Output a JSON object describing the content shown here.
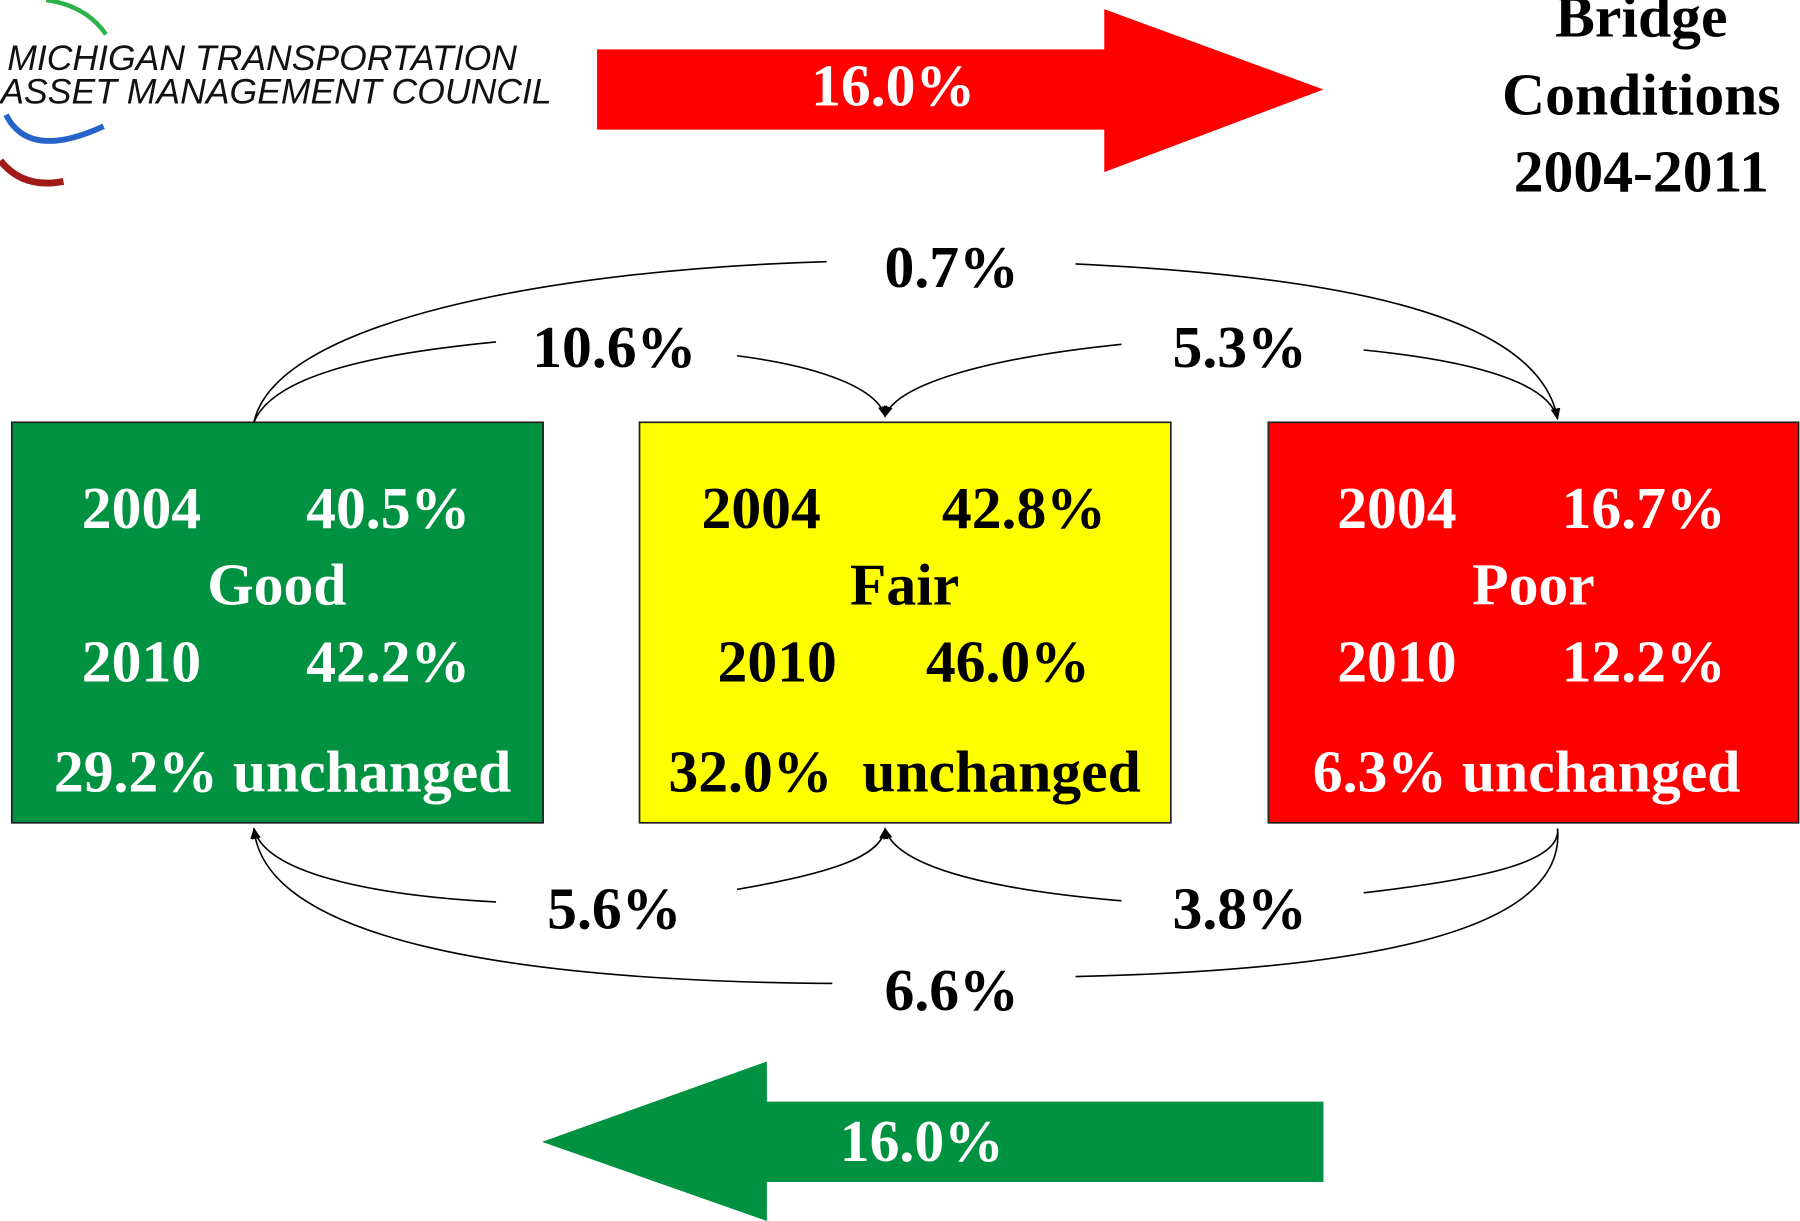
{
  "logo": {
    "lines": [
      "MICHIGAN TRANSPORTATION",
      "ASSET MANAGEMENT COUNCIL"
    ]
  },
  "title": {
    "lines": [
      "Bridge",
      "Conditions",
      "2004-2011"
    ]
  },
  "top_arrow": {
    "label": "16.0%"
  },
  "bottom_arrow": {
    "label": "16.0%"
  },
  "boxes": [
    {
      "name": "Good",
      "rows": [
        [
          "2004",
          "40.5%"
        ],
        [
          "2010",
          "42.2%"
        ]
      ],
      "unchanged": "29.2% unchanged"
    },
    {
      "name": "Fair",
      "rows": [
        [
          "2004",
          "42.8%"
        ],
        [
          "2010",
          "46.0%"
        ]
      ],
      "unchanged": "32.0%  unchanged"
    },
    {
      "name": "Poor",
      "rows": [
        [
          "2004",
          "16.7%"
        ],
        [
          "2010",
          "12.2%"
        ]
      ],
      "unchanged": "6.3% unchanged"
    }
  ],
  "flows": [
    {
      "label": "0.7%"
    },
    {
      "label": "10.6%"
    },
    {
      "label": "5.3%"
    },
    {
      "label": "5.6%"
    },
    {
      "label": "3.8%"
    },
    {
      "label": "6.6%"
    }
  ]
}
